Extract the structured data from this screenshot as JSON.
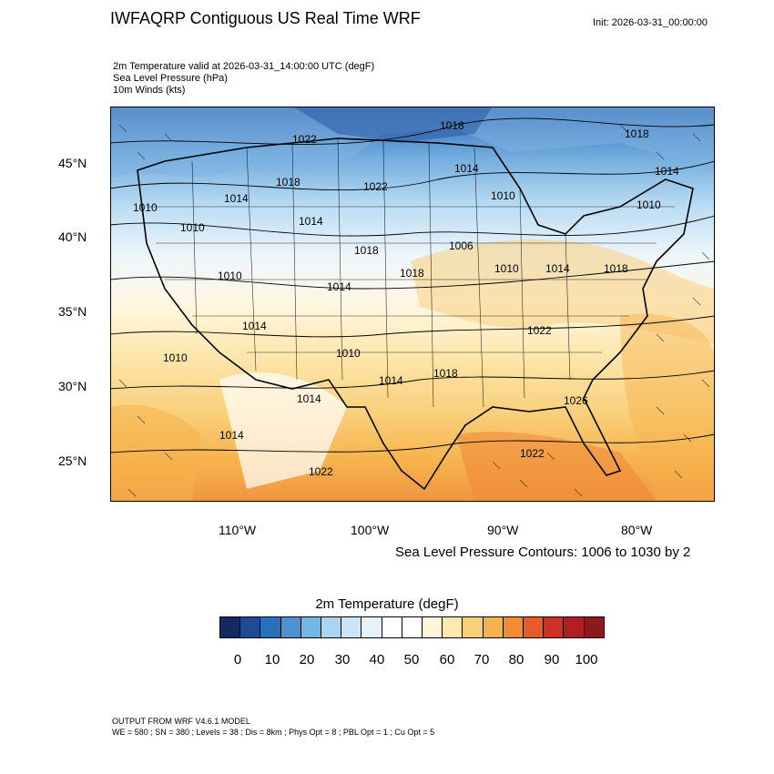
{
  "header": {
    "title": "IWFAQRP Contiguous US Real Time WRF",
    "init": "Init: 2026-03-31_00:00:00",
    "subtitles": [
      "2m Temperature valid at 2026-03-31_14:00:00 UTC   (degF)",
      "Sea Level Pressure   (hPa)",
      "10m Winds   (kts)"
    ]
  },
  "map": {
    "lat_labels": [
      "45°N",
      "40°N",
      "35°N",
      "30°N",
      "25°N"
    ],
    "lon_labels": [
      "110°W",
      "100°W",
      "90°W",
      "80°W"
    ],
    "contour_labels": [
      "1022",
      "1018",
      "1018",
      "1010",
      "1014",
      "1022",
      "1014",
      "1010",
      "1018",
      "1010",
      "1014",
      "1018",
      "1010",
      "1014",
      "1010",
      "1014",
      "1018",
      "1006",
      "1010",
      "1014",
      "1018",
      "1022",
      "1014",
      "1010",
      "1018",
      "1010",
      "1014",
      "1014",
      "1014",
      "1022",
      "1026",
      "1022"
    ],
    "contour_note": "Sea Level Pressure Contours: 1006 to 1030 by 2"
  },
  "colorbar": {
    "title": "2m Temperature  (degF)",
    "labels": [
      "0",
      "10",
      "20",
      "30",
      "40",
      "50",
      "60",
      "70",
      "80",
      "90",
      "100"
    ],
    "colors": [
      "#142a5e",
      "#1f4b94",
      "#2a6fbb",
      "#4d93d1",
      "#76b6e4",
      "#a8d6f2",
      "#c9e5f6",
      "#e6f2fa",
      "#ffffff",
      "#ffffff",
      "#fff6da",
      "#fde8b0",
      "#f9cf7a",
      "#f6b24c",
      "#f28d33",
      "#e85b2a",
      "#d22f28",
      "#b41d23",
      "#8a1a1c"
    ]
  },
  "footer": {
    "line1": "OUTPUT FROM WRF V4.6.1 MODEL",
    "line2": "WE = 580 ; SN = 380 ; Levels = 38 ; Dis = 8km ; Phys Opt = 8 ; PBL Opt = 1 ; Cu Opt = 5"
  }
}
